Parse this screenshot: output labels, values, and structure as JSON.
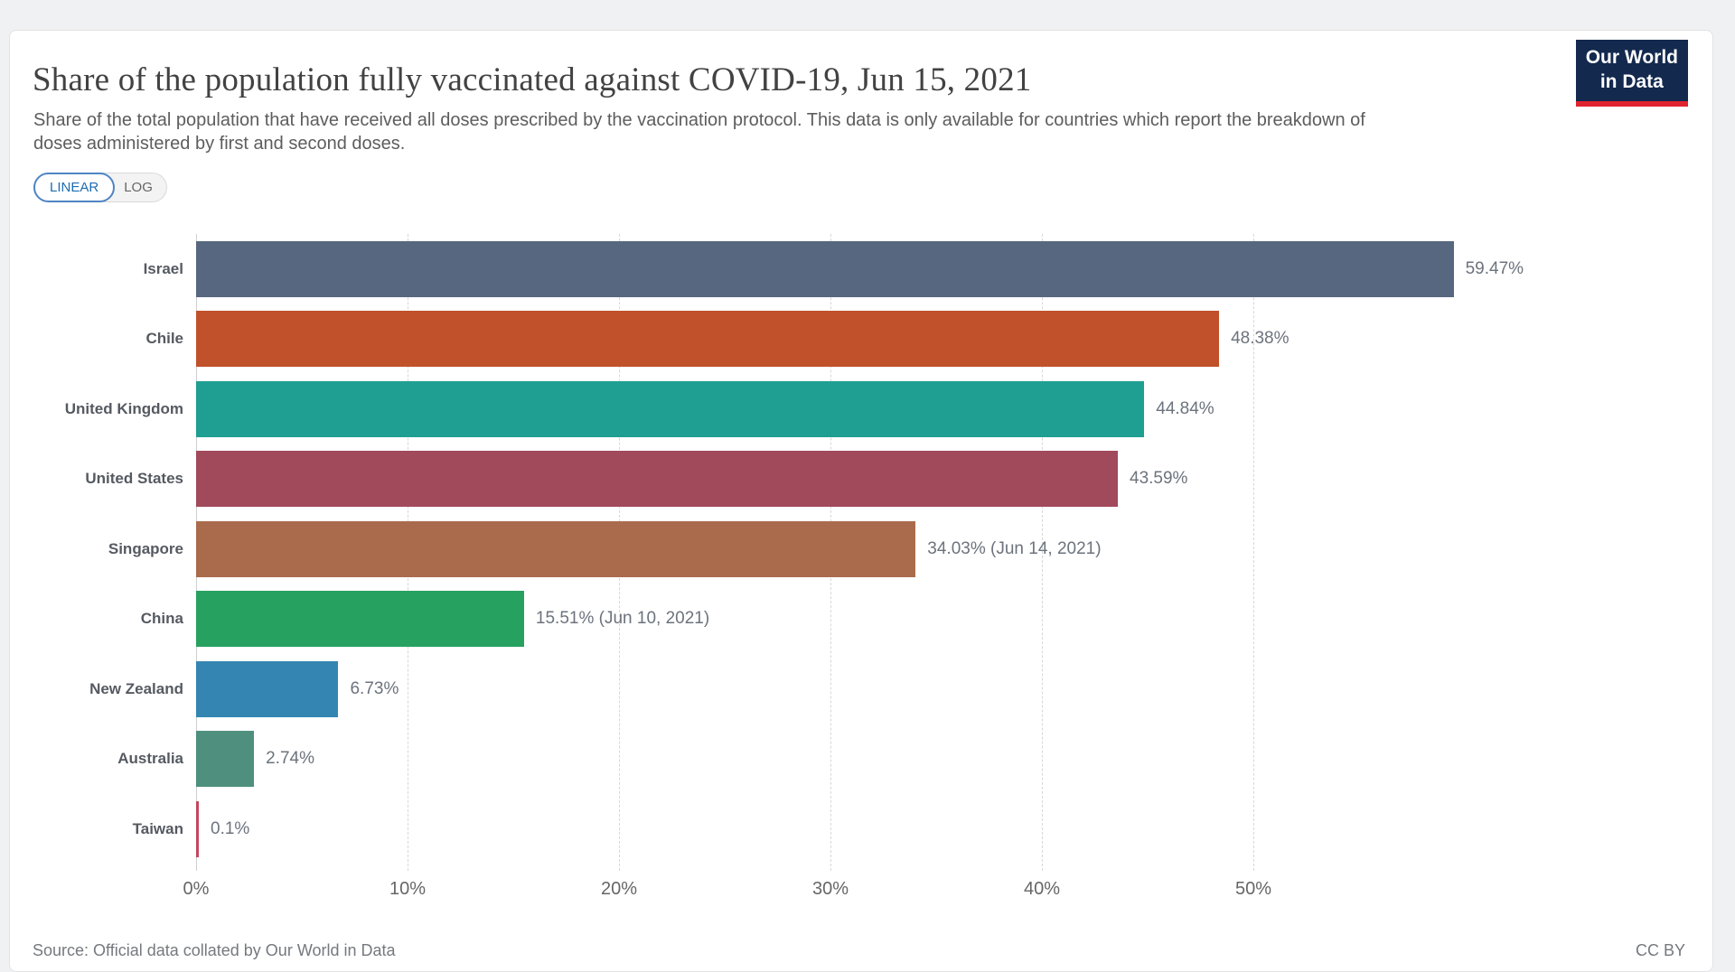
{
  "header": {
    "title": "Share of the population fully vaccinated against COVID-19, Jun 15, 2021",
    "subtitle": "Share of the total population that have received all doses prescribed by the vaccination protocol. This data is only available for countries which report the breakdown of doses administered by first and second doses.",
    "logo": {
      "line1": "Our World",
      "line2": "in Data",
      "bg_color": "#13294e",
      "accent_color": "#e02330"
    }
  },
  "controls": {
    "linear_label": "LINEAR",
    "log_label": "LOG",
    "active": "LINEAR",
    "active_color": "#1d6cb2"
  },
  "chart_data": {
    "type": "bar",
    "orientation": "horizontal",
    "title": "Share of the population fully vaccinated against COVID-19, Jun 15, 2021",
    "categories": [
      "Israel",
      "Chile",
      "United Kingdom",
      "United States",
      "Singapore",
      "China",
      "New Zealand",
      "Australia",
      "Taiwan"
    ],
    "values": [
      59.47,
      48.38,
      44.84,
      43.59,
      34.03,
      15.51,
      6.73,
      2.74,
      0.1
    ],
    "value_labels": [
      "59.47%",
      "48.38%",
      "44.84%",
      "43.59%",
      "34.03% (Jun 14, 2021)",
      "15.51% (Jun 10, 2021)",
      "6.73%",
      "2.74%",
      "0.1%"
    ],
    "bar_colors": [
      "#57677f",
      "#c0512a",
      "#1f9e92",
      "#a04a5b",
      "#aa6b4d",
      "#27a160",
      "#3485b2",
      "#4e8f7d",
      "#c4465e"
    ],
    "x_tick_values": [
      0,
      10,
      20,
      30,
      40,
      50
    ],
    "x_tick_labels": [
      "0%",
      "10%",
      "20%",
      "30%",
      "40%",
      "50%"
    ],
    "xlim": [
      0,
      60
    ],
    "xlabel": "",
    "ylabel": "",
    "grid": "vertical-dashed",
    "legend": "none"
  },
  "footer": {
    "source": "Source: Official data collated by Our World in Data",
    "license": "CC BY"
  }
}
